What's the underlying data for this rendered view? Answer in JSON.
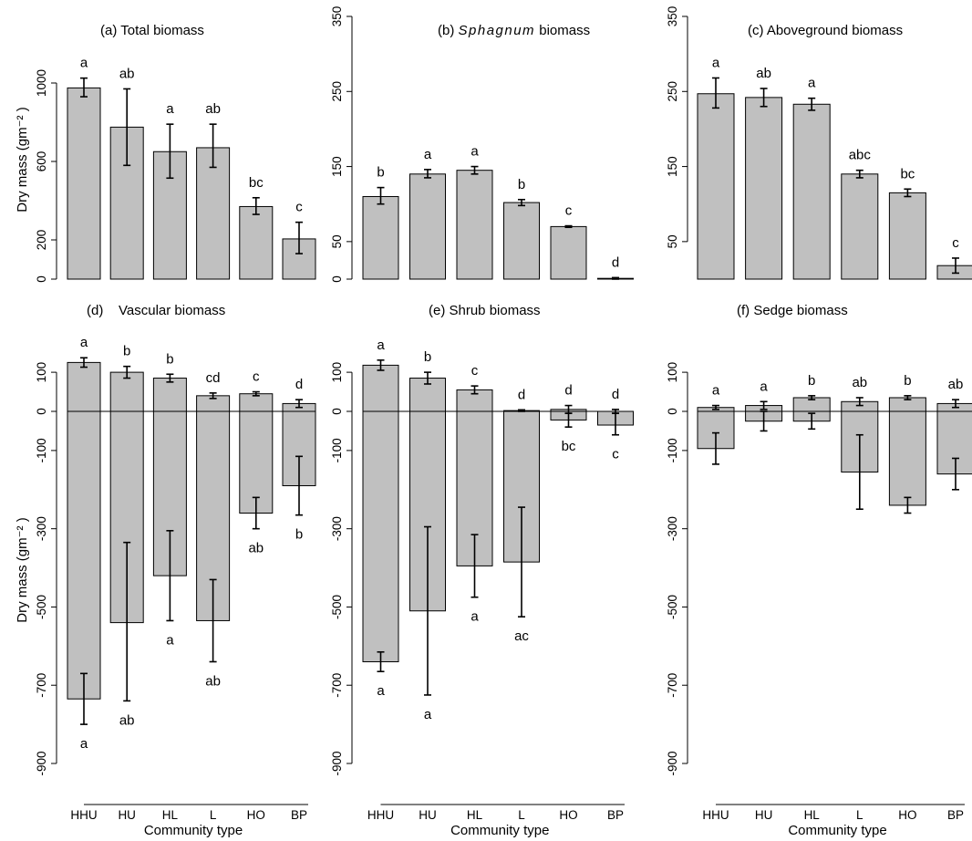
{
  "chart_data": [
    {
      "panel": "a",
      "type": "bar",
      "title": "(a) Total biomass",
      "title_prefix": "",
      "title_italic": "",
      "title_suffix": "",
      "categories": [
        "HHU",
        "HU",
        "HL",
        "L",
        "HO",
        "BP"
      ],
      "ylim": [
        0,
        1200
      ],
      "yticks": [
        0,
        200,
        600,
        1000
      ],
      "show_ylabel": true,
      "ylabel": "Dry mass (gm⁻² )",
      "show_xaxis": false,
      "xlabel": "",
      "series": [
        {
          "values": [
            975,
            775,
            650,
            670,
            370,
            205
          ],
          "err_low": [
            930,
            580,
            515,
            570,
            330,
            130
          ],
          "err_high": [
            1025,
            970,
            790,
            790,
            415,
            290
          ],
          "letters": [
            "a",
            "ab",
            "a",
            "ab",
            "bc",
            "c"
          ],
          "letter_pos": "above"
        }
      ]
    },
    {
      "panel": "b",
      "type": "bar",
      "title": "(b) Sphagnum biomass",
      "title_prefix": "(b) ",
      "title_italic": "Sphagnum",
      "title_suffix": " biomass",
      "categories": [
        "HHU",
        "HU",
        "HL",
        "L",
        "HO",
        "BP"
      ],
      "ylim": [
        0,
        350
      ],
      "yticks": [
        0,
        50,
        150,
        250,
        350
      ],
      "show_ylabel": false,
      "ylabel": "",
      "show_xaxis": false,
      "xlabel": "",
      "series": [
        {
          "values": [
            110,
            140,
            145,
            102,
            70,
            1
          ],
          "err_low": [
            100,
            135,
            140,
            98,
            69,
            0
          ],
          "err_high": [
            122,
            146,
            150,
            106,
            71,
            2
          ],
          "letters": [
            "b",
            "a",
            "a",
            "b",
            "c",
            "d"
          ],
          "letter_pos": "above"
        }
      ]
    },
    {
      "panel": "c",
      "type": "bar",
      "title": "(c) Aboveground biomass",
      "title_prefix": "",
      "title_italic": "",
      "title_suffix": "",
      "categories": [
        "HHU",
        "HU",
        "HL",
        "L",
        "HO",
        "BP"
      ],
      "ylim": [
        0,
        350
      ],
      "yticks": [
        50,
        150,
        250,
        350
      ],
      "show_ylabel": false,
      "ylabel": "",
      "show_xaxis": false,
      "xlabel": "",
      "series": [
        {
          "values": [
            247,
            242,
            233,
            140,
            115,
            18
          ],
          "err_low": [
            228,
            230,
            225,
            135,
            110,
            8
          ],
          "err_high": [
            268,
            254,
            241,
            145,
            120,
            28
          ],
          "letters": [
            "a",
            "ab",
            "a",
            "abc",
            "bc",
            "c"
          ],
          "letter_pos": "above"
        }
      ]
    },
    {
      "panel": "d",
      "type": "bar",
      "title": "(d)    Vascular biomass",
      "title_prefix": "",
      "title_italic": "",
      "title_suffix": "",
      "categories": [
        "HHU",
        "HU",
        "HL",
        "L",
        "HO",
        "BP"
      ],
      "ylim": [
        -900,
        150
      ],
      "yticks": [
        -900,
        -700,
        -500,
        -300,
        -100,
        0,
        100
      ],
      "show_ylabel": true,
      "ylabel": "Dry mass (gm⁻² )",
      "show_xaxis": true,
      "xlabel": "Community type",
      "series": [
        {
          "values": [
            125,
            100,
            85,
            40,
            45,
            20
          ],
          "err_low": [
            113,
            85,
            75,
            33,
            40,
            10
          ],
          "err_high": [
            137,
            115,
            95,
            47,
            50,
            30
          ],
          "letters": [
            "a",
            "b",
            "b",
            "cd",
            "c",
            "d"
          ],
          "letter_pos": "above"
        },
        {
          "values": [
            -735,
            -540,
            -420,
            -535,
            -260,
            -190
          ],
          "err_low": [
            -800,
            -740,
            -535,
            -640,
            -300,
            -265
          ],
          "err_high": [
            -670,
            -335,
            -305,
            -430,
            -220,
            -115
          ],
          "letters": [
            "a",
            "ab",
            "a",
            "ab",
            "ab",
            "b"
          ],
          "letter_pos": "below"
        }
      ]
    },
    {
      "panel": "e",
      "type": "bar",
      "title": "(e) Shrub biomass",
      "title_prefix": "",
      "title_italic": "",
      "title_suffix": "",
      "categories": [
        "HHU",
        "HU",
        "HL",
        "L",
        "HO",
        "BP"
      ],
      "ylim": [
        -900,
        150
      ],
      "yticks": [
        -900,
        -700,
        -500,
        -300,
        -100,
        0,
        100
      ],
      "show_ylabel": false,
      "ylabel": "",
      "show_xaxis": true,
      "xlabel": "Community type",
      "series": [
        {
          "values": [
            118,
            85,
            55,
            2,
            5,
            0
          ],
          "err_low": [
            105,
            70,
            45,
            0,
            -5,
            -5
          ],
          "err_high": [
            131,
            100,
            65,
            4,
            15,
            5
          ],
          "letters": [
            "a",
            "b",
            "c",
            "d",
            "d",
            "d"
          ],
          "letter_pos": "above"
        },
        {
          "values": [
            -640,
            -510,
            -395,
            -385,
            -22,
            -35
          ],
          "err_low": [
            -665,
            -725,
            -475,
            -525,
            -40,
            -60
          ],
          "err_high": [
            -615,
            -295,
            -315,
            -245,
            -5,
            -5
          ],
          "letters": [
            "a",
            "a",
            "a",
            "ac",
            "bc",
            "c"
          ],
          "letter_pos": "below"
        }
      ]
    },
    {
      "panel": "f",
      "type": "bar",
      "title": "(f) Sedge biomass",
      "title_prefix": "",
      "title_italic": "",
      "title_suffix": "",
      "categories": [
        "HHU",
        "HU",
        "HL",
        "L",
        "HO",
        "BP"
      ],
      "ylim": [
        -900,
        150
      ],
      "yticks": [
        -900,
        -700,
        -500,
        -300,
        -100,
        0,
        100
      ],
      "show_ylabel": false,
      "ylabel": "",
      "show_xaxis": true,
      "xlabel": "Community type",
      "series": [
        {
          "values": [
            10,
            15,
            35,
            25,
            35,
            20
          ],
          "err_low": [
            5,
            5,
            30,
            15,
            30,
            10
          ],
          "err_high": [
            15,
            25,
            40,
            35,
            40,
            30
          ],
          "letters": [
            "a",
            "a",
            "b",
            "ab",
            "b",
            "ab"
          ],
          "letter_pos": "above"
        },
        {
          "values": [
            -95,
            -25,
            -25,
            -155,
            -240,
            -160
          ],
          "err_low": [
            -135,
            -50,
            -45,
            -250,
            -260,
            -200
          ],
          "err_high": [
            -55,
            0,
            -5,
            -60,
            -220,
            -120
          ],
          "letters": [],
          "letter_pos": "below"
        }
      ]
    }
  ]
}
